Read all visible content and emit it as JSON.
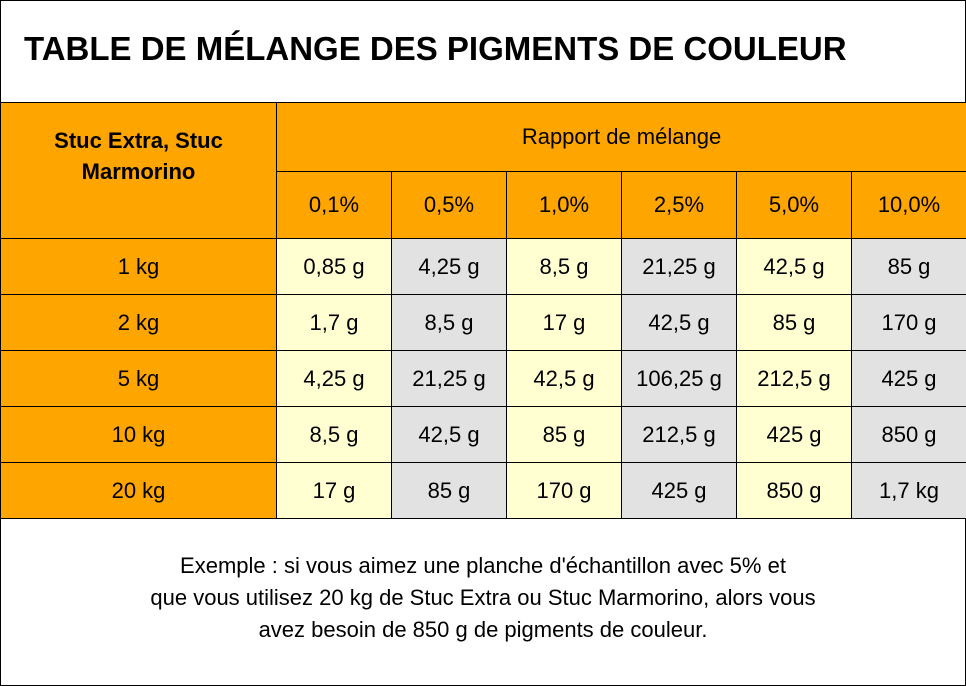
{
  "title": "TABLE DE MÉLANGE DES PIGMENTS DE COULEUR",
  "table": {
    "corner_label": "Stuc Extra, Stuc Marmorino",
    "group_header": "Rapport de mélange",
    "ratios": [
      "0,1%",
      "0,5%",
      "1,0%",
      "2,5%",
      "5,0%",
      "10,0%"
    ],
    "rows": [
      {
        "label": "1 kg",
        "values": [
          "0,85 g",
          "4,25 g",
          "8,5 g",
          "21,25 g",
          "42,5 g",
          "85 g"
        ]
      },
      {
        "label": "2 kg",
        "values": [
          "1,7 g",
          "8,5 g",
          "17 g",
          "42,5 g",
          "85 g",
          "170 g"
        ]
      },
      {
        "label": "5 kg",
        "values": [
          "4,25 g",
          "21,25 g",
          "42,5 g",
          "106,25 g",
          "212,5 g",
          "425 g"
        ]
      },
      {
        "label": "10 kg",
        "values": [
          "8,5 g",
          "42,5 g",
          "85 g",
          "212,5 g",
          "425 g",
          "850 g"
        ]
      },
      {
        "label": "20 kg",
        "values": [
          "17 g",
          "85 g",
          "170 g",
          "425 g",
          "850 g",
          "1,7 kg"
        ]
      }
    ]
  },
  "example": {
    "line1": "Exemple : si vous aimez une planche d'échantillon avec 5% et",
    "line2": "que vous utilisez 20 kg de Stuc Extra ou Stuc Marmorino, alors vous",
    "line3": "avez besoin de 850 g de pigments de couleur."
  },
  "colors": {
    "header_orange": "#ffa500",
    "cell_light_yellow": "#ffffd2",
    "cell_light_gray": "#e2e2e2"
  }
}
